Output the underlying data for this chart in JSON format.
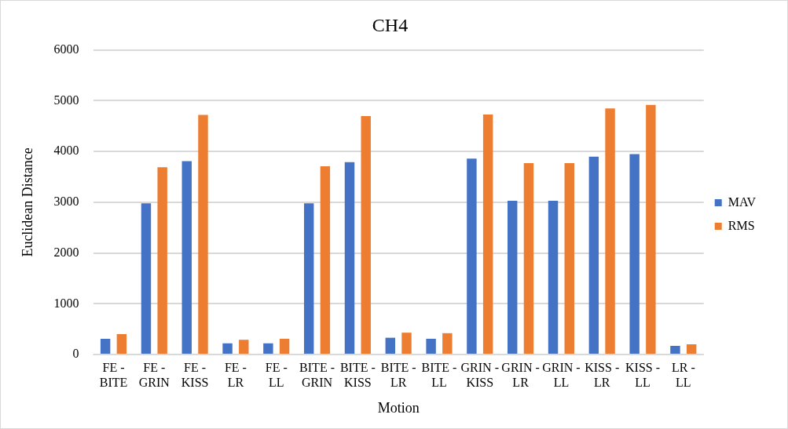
{
  "chart_data": {
    "type": "bar",
    "title": "CH4",
    "xlabel": "Motion",
    "ylabel": "Euclidean Distance",
    "categories": [
      "FE - BITE",
      "FE - GRIN",
      "FE - KISS",
      "FE - LR",
      "FE - LL",
      "BITE - GRIN",
      "BITE - KISS",
      "BITE - LR",
      "BITE - LL",
      "GRIN - KISS",
      "GRIN - LR",
      "GRIN - LL",
      "KISS - LR",
      "KISS - LL",
      "LR - LL"
    ],
    "series": [
      {
        "name": "MAV",
        "color": "#4472c4",
        "values": [
          310,
          2980,
          3810,
          220,
          220,
          2980,
          3790,
          330,
          310,
          3860,
          3030,
          3030,
          3900,
          3950,
          170
        ]
      },
      {
        "name": "RMS",
        "color": "#ed7d31",
        "values": [
          400,
          3690,
          4720,
          290,
          310,
          3710,
          4700,
          430,
          420,
          4730,
          3770,
          3770,
          4850,
          4920,
          200
        ]
      }
    ],
    "ylim": [
      0,
      6000
    ],
    "yticks": [
      0,
      1000,
      2000,
      3000,
      4000,
      5000,
      6000
    ],
    "grid": "y",
    "legend": "right"
  }
}
